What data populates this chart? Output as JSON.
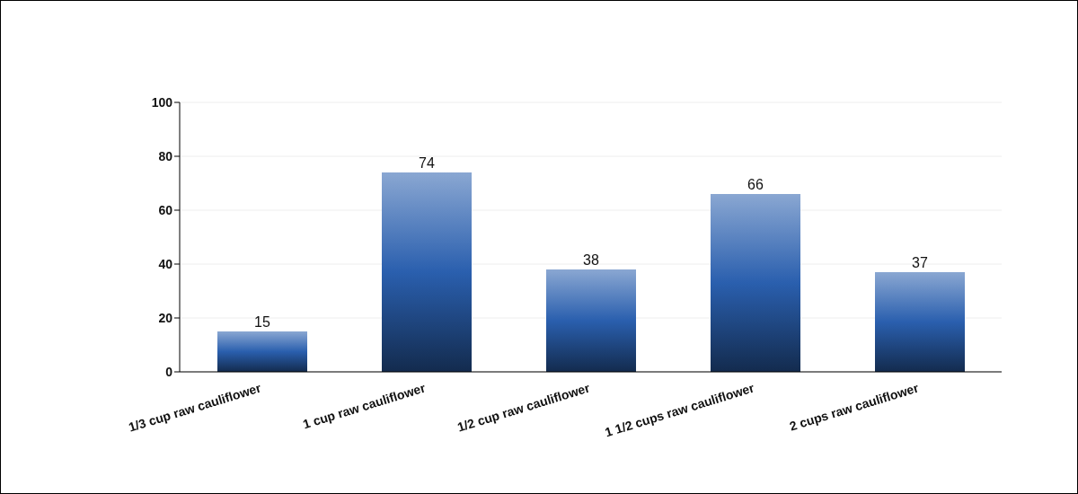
{
  "chart_data": {
    "type": "bar",
    "categories": [
      "1/3 cup raw cauliflower",
      "1 cup raw cauliflower",
      "1/2 cup raw cauliflower",
      "1 1/2 cups raw cauliflower",
      "2 cups raw cauliflower"
    ],
    "values": [
      15,
      74,
      38,
      66,
      37
    ],
    "color": "#2a5fae",
    "ylim": [
      0,
      100
    ],
    "yticks": [
      0,
      20,
      40,
      60,
      80,
      100
    ],
    "grid": "y",
    "data_labels": true
  }
}
